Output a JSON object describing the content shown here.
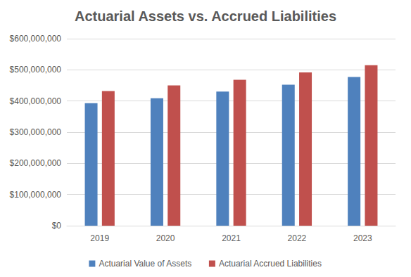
{
  "chart_data": {
    "type": "bar",
    "title": "Actuarial Assets vs. Accrued Liabilities",
    "categories": [
      "2019",
      "2020",
      "2021",
      "2022",
      "2023"
    ],
    "series": [
      {
        "name": "Actuarial Value of Assets",
        "color": "#4f81bd",
        "values": [
          393000000,
          409000000,
          430000000,
          452000000,
          477000000
        ]
      },
      {
        "name": "Actuarial Accrued Liabilities",
        "color": "#c0504d",
        "values": [
          432000000,
          450000000,
          468000000,
          492000000,
          515000000
        ]
      }
    ],
    "ylim": [
      0,
      600000000
    ],
    "yticks": [
      {
        "value": 0,
        "label": "$0"
      },
      {
        "value": 100000000,
        "label": "$100,000,000"
      },
      {
        "value": 200000000,
        "label": "$200,000,000"
      },
      {
        "value": 300000000,
        "label": "$300,000,000"
      },
      {
        "value": 400000000,
        "label": "$400,000,000"
      },
      {
        "value": 500000000,
        "label": "$500,000,000"
      },
      {
        "value": 600000000,
        "label": "$600,000,000"
      }
    ],
    "grid": true,
    "legend": "bottom"
  }
}
